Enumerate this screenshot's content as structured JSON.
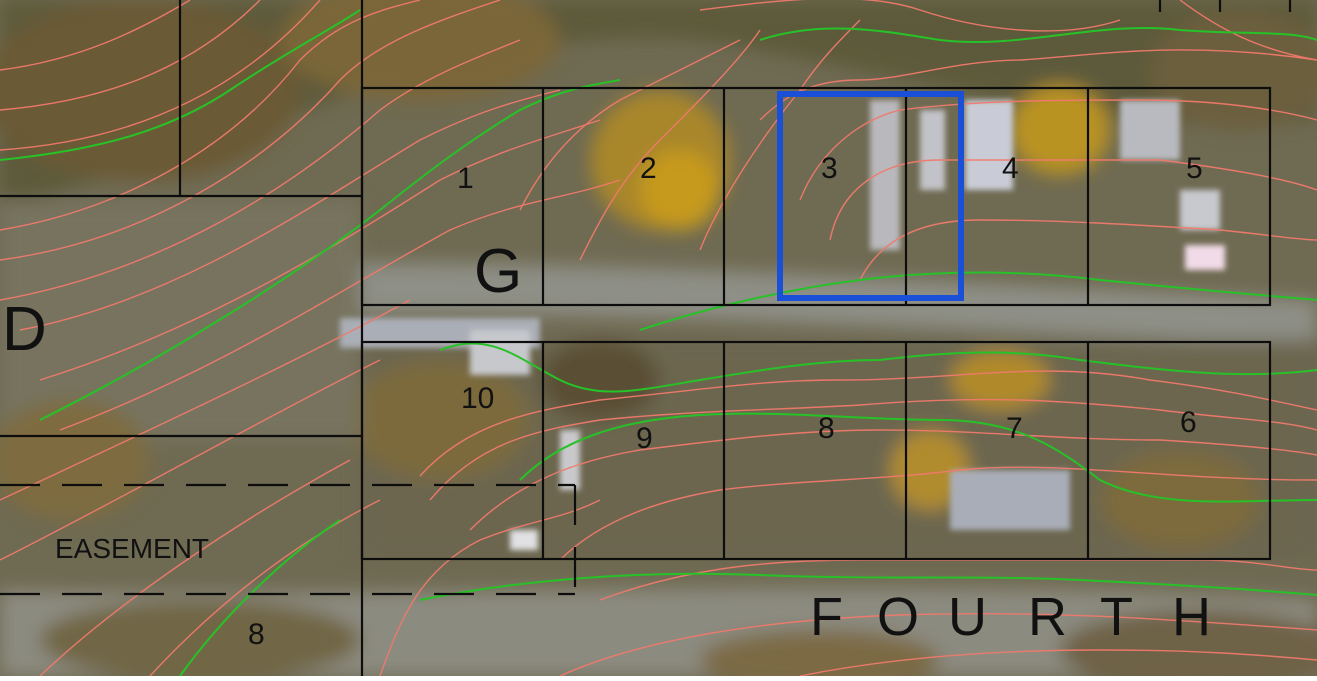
{
  "map": {
    "block_letter": "G",
    "street_name_letters": [
      "F",
      "O",
      "U",
      "R",
      "T",
      "H"
    ],
    "easement_label": "EASEMENT",
    "adjacent_block_letter": "D",
    "adjacent_lot_number": "8",
    "lots_top_row": [
      "1",
      "2",
      "3",
      "4",
      "5"
    ],
    "lots_bottom_row": [
      "10",
      "9",
      "8",
      "7",
      "6"
    ],
    "selected_lot": "3",
    "colors": {
      "lot_lines": "#0d0d0d",
      "highlight": "#1a4fd8",
      "contour_minor": "#f07a6c",
      "contour_major": "#27c227"
    }
  }
}
